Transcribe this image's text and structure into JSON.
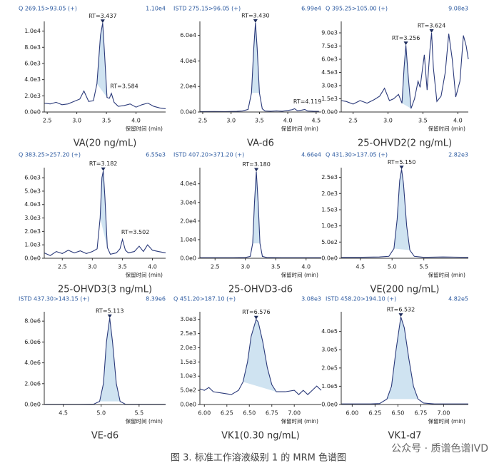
{
  "caption": "图 3. 标准工作溶液级别 1 的 MRM 色谱图",
  "watermark": "公众号 · 质谱色谱IVD",
  "chart_data": [
    {
      "type": "line",
      "title": "VA(20 ng/mL)",
      "header_left": "Q 269.15>93.05 (+)",
      "header_right": "1.10e4",
      "xlabel": "保留时间 (min)",
      "color": "#2b3a7a",
      "fill_color": "#cfe3f1",
      "xlim": [
        2.45,
        4.5
      ],
      "xticks": [
        2.5,
        {
          "value": 3,
          "label": "3.0"
        },
        3.5,
        {
          "value": 4,
          "label": "4.0"
        }
      ],
      "ylim": [
        0,
        11200
      ],
      "yticks": [
        {
          "value": 0,
          "label": "0.0e0"
        },
        {
          "value": 2000,
          "label": "2.0e3"
        },
        {
          "value": 4000,
          "label": "4.0e3"
        },
        {
          "value": 6000,
          "label": "6.0e3"
        },
        {
          "value": 8000,
          "label": "8.0e3"
        },
        {
          "value": 10000,
          "label": "1.0e4"
        }
      ],
      "x": [
        2.45,
        2.55,
        2.65,
        2.75,
        2.85,
        2.95,
        3.05,
        3.12,
        3.2,
        3.28,
        3.34,
        3.4,
        3.437,
        3.47,
        3.51,
        3.55,
        3.584,
        3.63,
        3.7,
        3.8,
        3.9,
        4.0,
        4.1,
        4.2,
        4.3,
        4.4,
        4.5
      ],
      "values": [
        1100,
        1000,
        1200,
        900,
        1000,
        1300,
        1600,
        2600,
        1300,
        1400,
        3500,
        9500,
        11000,
        7000,
        1800,
        1700,
        2300,
        1200,
        700,
        800,
        1000,
        600,
        900,
        1100,
        700,
        500,
        400
      ],
      "integration": [
        3.33,
        3.52
      ],
      "annotations": [
        {
          "text": "RT=3.437",
          "x": 3.437,
          "y": 11000,
          "marker": true
        },
        {
          "text": "RT=3.584",
          "x": 3.584,
          "y": 2300,
          "marker": false
        }
      ]
    },
    {
      "type": "line",
      "title": "VA-d6",
      "header_left": "ISTD 275.15>96.05 (+)",
      "header_right": "6.99e4",
      "xlabel": "保留时间 (min)",
      "color": "#2b3a7a",
      "fill_color": "#cfe3f1",
      "xlim": [
        2.45,
        4.59
      ],
      "xticks": [
        2.5,
        {
          "value": 3,
          "label": "3.0"
        },
        3.5,
        {
          "value": 4,
          "label": "4.0"
        },
        4.5
      ],
      "ylim": [
        0,
        71000
      ],
      "yticks": [
        {
          "value": 0,
          "label": "0.0e0"
        },
        {
          "value": 20000,
          "label": "2.0e4"
        },
        {
          "value": 40000,
          "label": "4.0e4"
        },
        {
          "value": 60000,
          "label": "6.0e4"
        }
      ],
      "x": [
        2.45,
        2.7,
        2.9,
        3.1,
        3.2,
        3.3,
        3.36,
        3.4,
        3.43,
        3.46,
        3.5,
        3.55,
        3.6,
        3.7,
        3.8,
        3.9,
        4.0,
        4.08,
        4.119,
        4.17,
        4.25,
        4.3,
        4.35,
        4.45,
        4.55
      ],
      "values": [
        300,
        400,
        300,
        500,
        800,
        2000,
        15000,
        50000,
        69900,
        50000,
        15000,
        2500,
        800,
        600,
        900,
        600,
        1200,
        1800,
        2600,
        1000,
        1500,
        2000,
        800,
        600,
        500
      ],
      "integration": [
        3.35,
        3.53
      ],
      "annotations": [
        {
          "text": "RT=3.430",
          "x": 3.43,
          "y": 69900,
          "marker": true
        },
        {
          "text": "RT=4.119",
          "x": 4.119,
          "y": 2600,
          "marker": false
        }
      ]
    },
    {
      "type": "line",
      "title": "25-OHVD2(2 ng/mL)",
      "header_left": "Q 395.25>105.00 (+)",
      "header_right": "9.08e3",
      "xlabel": "保留时间 (min)",
      "color": "#2b3a7a",
      "fill_color": "#cfe3f1",
      "xlim": [
        2.33,
        4.15
      ],
      "xticks": [
        2.5,
        {
          "value": 3,
          "label": "3.0"
        },
        3.5,
        {
          "value": 4,
          "label": "4.0"
        }
      ],
      "ylim": [
        0,
        10300
      ],
      "yticks": [
        {
          "value": 0,
          "label": "0.0e0"
        },
        {
          "value": 1500,
          "label": "1.5e3"
        },
        {
          "value": 3000,
          "label": "3.0e3"
        },
        {
          "value": 4500,
          "label": "4.5e3"
        },
        {
          "value": 6000,
          "label": "6.0e3"
        },
        {
          "value": 7500,
          "label": "7.5e3"
        },
        {
          "value": 9000,
          "label": "9.0e3"
        }
      ],
      "x": [
        2.33,
        2.4,
        2.5,
        2.6,
        2.7,
        2.8,
        2.88,
        2.95,
        3.02,
        3.08,
        3.15,
        3.2,
        3.23,
        3.256,
        3.29,
        3.33,
        3.38,
        3.43,
        3.46,
        3.52,
        3.56,
        3.6,
        3.624,
        3.65,
        3.7,
        3.76,
        3.82,
        3.87,
        3.92,
        3.97,
        4.03,
        4.08,
        4.12,
        4.15
      ],
      "values": [
        1300,
        1200,
        900,
        1300,
        1000,
        1400,
        1800,
        2700,
        1300,
        1500,
        2000,
        1000,
        5000,
        7600,
        4000,
        400,
        1500,
        3500,
        2800,
        6500,
        2500,
        7000,
        9000,
        5000,
        1200,
        1800,
        4500,
        8900,
        6000,
        1700,
        3500,
        8700,
        7500,
        6000
      ],
      "integration": [
        3.2,
        3.33
      ],
      "annotations": [
        {
          "text": "RT=3.256",
          "x": 3.256,
          "y": 7600,
          "marker": true
        },
        {
          "text": "RT=3.624",
          "x": 3.624,
          "y": 9000,
          "marker": true
        }
      ]
    },
    {
      "type": "line",
      "title": "25-OHVD3(3 ng/mL)",
      "header_left": "Q 383.25>257.20 (+)",
      "header_right": "6.55e3",
      "xlabel": "保留时间 (min)",
      "color": "#2b3a7a",
      "fill_color": "#cfe3f1",
      "xlim": [
        2.2,
        4.22
      ],
      "xticks": [
        2.5,
        {
          "value": 3,
          "label": "3.0"
        },
        3.5,
        {
          "value": 4,
          "label": "4.0"
        }
      ],
      "ylim": [
        0,
        6750
      ],
      "yticks": [
        {
          "value": 0,
          "label": "0.0e0"
        },
        {
          "value": 1000,
          "label": "1.0e3"
        },
        {
          "value": 2000,
          "label": "2.0e3"
        },
        {
          "value": 3000,
          "label": "3.0e3"
        },
        {
          "value": 4000,
          "label": "4.0e3"
        },
        {
          "value": 5000,
          "label": "5.0e3"
        },
        {
          "value": 6000,
          "label": "6.0e3"
        }
      ],
      "x": [
        2.2,
        2.3,
        2.4,
        2.5,
        2.6,
        2.7,
        2.8,
        2.9,
        3.0,
        3.08,
        3.13,
        3.16,
        3.182,
        3.21,
        3.25,
        3.3,
        3.4,
        3.46,
        3.502,
        3.55,
        3.6,
        3.7,
        3.78,
        3.85,
        3.92,
        4.0,
        4.1,
        4.22
      ],
      "values": [
        400,
        200,
        500,
        350,
        600,
        400,
        550,
        350,
        500,
        700,
        3000,
        6000,
        6500,
        4500,
        800,
        300,
        400,
        700,
        1400,
        600,
        400,
        500,
        900,
        500,
        1000,
        600,
        500,
        400
      ],
      "integration": [
        3.11,
        3.27
      ],
      "annotations": [
        {
          "text": "RT=3.182",
          "x": 3.182,
          "y": 6500,
          "marker": true
        },
        {
          "text": "RT=3.502",
          "x": 3.502,
          "y": 1400,
          "marker": false
        }
      ]
    },
    {
      "type": "line",
      "title": "25-OHVD3-d6",
      "header_left": "ISTD 407.20>371.20 (+)",
      "header_right": "4.66e4",
      "xlabel": "保留时间 (min)",
      "color": "#2b3a7a",
      "fill_color": "#cfe3f1",
      "xlim": [
        2.25,
        4.25
      ],
      "xticks": [
        2.5,
        {
          "value": 3,
          "label": "3.0"
        },
        3.5,
        {
          "value": 4,
          "label": "4.0"
        }
      ],
      "ylim": [
        0,
        48700
      ],
      "yticks": [
        {
          "value": 0,
          "label": "0.0e0"
        },
        {
          "value": 10000,
          "label": "1.0e4"
        },
        {
          "value": 20000,
          "label": "2.0e4"
        },
        {
          "value": 30000,
          "label": "3.0e4"
        },
        {
          "value": 40000,
          "label": "4.0e4"
        }
      ],
      "x": [
        2.25,
        2.5,
        2.8,
        3.0,
        3.08,
        3.12,
        3.15,
        3.18,
        3.21,
        3.24,
        3.28,
        3.35,
        3.6,
        3.9,
        4.25
      ],
      "values": [
        300,
        300,
        300,
        400,
        1000,
        8000,
        30000,
        46600,
        30000,
        8000,
        1000,
        400,
        300,
        300,
        300
      ],
      "integration": [
        3.1,
        3.27
      ],
      "annotations": [
        {
          "text": "RT=3.180",
          "x": 3.18,
          "y": 46600,
          "marker": true
        }
      ]
    },
    {
      "type": "line",
      "title": "VE(200 ng/mL)",
      "header_left": "Q 431.30>137.05 (+)",
      "header_right": "2.82e3",
      "xlabel": "保留时间 (min)",
      "color": "#2b3a7a",
      "fill_color": "#cfe3f1",
      "xlim": [
        4.2,
        6.2
      ],
      "xticks": [
        4.5,
        {
          "value": 5,
          "label": "5.0"
        },
        5.5
      ],
      "ylim": [
        0,
        2800
      ],
      "yticks": [
        {
          "value": 0,
          "label": "0.0e0"
        },
        {
          "value": 500,
          "label": "5.0e2"
        },
        {
          "value": 1000,
          "label": "1.0e3"
        },
        {
          "value": 1500,
          "label": "1.5e3"
        },
        {
          "value": 2000,
          "label": "2.0e3"
        },
        {
          "value": 2500,
          "label": "2.5e3"
        }
      ],
      "x": [
        4.2,
        4.5,
        4.8,
        4.95,
        5.03,
        5.08,
        5.12,
        5.15,
        5.18,
        5.23,
        5.28,
        5.35,
        5.5,
        5.8,
        6.2
      ],
      "values": [
        30,
        30,
        40,
        60,
        300,
        1200,
        2400,
        2750,
        2300,
        1000,
        250,
        60,
        30,
        40,
        30
      ],
      "integration": [
        5.0,
        5.32
      ],
      "annotations": [
        {
          "text": "RT=5.150",
          "x": 5.15,
          "y": 2750,
          "marker": true
        }
      ]
    },
    {
      "type": "line",
      "title": "VE-d6",
      "header_left": "ISTD 437.30>143.15 (+)",
      "header_right": "8.39e6",
      "xlabel": "保留时间 (min)",
      "color": "#2b3a7a",
      "fill_color": "#cfe3f1",
      "xlim": [
        4.25,
        5.85
      ],
      "xticks": [
        4.5,
        {
          "value": 5,
          "label": "5.0"
        },
        5.5
      ],
      "ylim": [
        0,
        8900000
      ],
      "yticks": [
        {
          "value": 0,
          "label": "0.0e0"
        },
        {
          "value": 2000000,
          "label": "2.0e6"
        },
        {
          "value": 4000000,
          "label": "4.0e6"
        },
        {
          "value": 6000000,
          "label": "6.0e6"
        },
        {
          "value": 8000000,
          "label": "8.0e6"
        }
      ],
      "x": [
        4.25,
        4.7,
        4.9,
        4.98,
        5.03,
        5.07,
        5.113,
        5.15,
        5.2,
        5.25,
        5.32,
        5.5,
        5.85
      ],
      "values": [
        20000,
        20000,
        30000,
        300000,
        2000000,
        6000000,
        8300000,
        6000000,
        2000000,
        300000,
        30000,
        20000,
        20000
      ],
      "integration": [
        4.97,
        5.27
      ],
      "annotations": [
        {
          "text": "RT=5.113",
          "x": 5.113,
          "y": 8300000,
          "marker": true
        }
      ]
    },
    {
      "type": "line",
      "title": "VK1(0.30 ng/mL)",
      "header_left": "Q 451.20>187.10 (+)",
      "header_right": "3.08e3",
      "xlabel": "保留时间 (min)",
      "color": "#2b3a7a",
      "fill_color": "#cfe3f1",
      "xlim": [
        5.95,
        7.3
      ],
      "xticks": [
        {
          "value": 6,
          "label": "6.00"
        },
        6.25,
        {
          "value": 6.5,
          "label": "6.50"
        },
        6.75,
        {
          "value": 7,
          "label": "7.00"
        }
      ],
      "ylim": [
        0,
        3270
      ],
      "yticks": [
        {
          "value": 0,
          "label": "0.0e0"
        },
        {
          "value": 500,
          "label": "5.0e2"
        },
        {
          "value": 1000,
          "label": "1.0e3"
        },
        {
          "value": 1500,
          "label": "1.5e3"
        },
        {
          "value": 2000,
          "label": "2.0e3"
        },
        {
          "value": 2500,
          "label": "2.5e3"
        },
        {
          "value": 3000,
          "label": "3.0e3"
        }
      ],
      "x": [
        5.95,
        6.0,
        6.05,
        6.1,
        6.2,
        6.3,
        6.38,
        6.43,
        6.48,
        6.52,
        6.576,
        6.6,
        6.65,
        6.7,
        6.75,
        6.8,
        6.9,
        7.0,
        7.05,
        7.1,
        7.15,
        7.2,
        7.25,
        7.3
      ],
      "values": [
        550,
        500,
        600,
        450,
        400,
        350,
        500,
        800,
        1500,
        2400,
        3000,
        2900,
        2200,
        1300,
        700,
        450,
        450,
        500,
        350,
        500,
        350,
        500,
        650,
        500
      ],
      "integration": [
        6.4,
        6.83
      ],
      "annotations": [
        {
          "text": "RT=6.576",
          "x": 6.576,
          "y": 3000,
          "marker": true
        }
      ]
    },
    {
      "type": "line",
      "title": "VK1-d7",
      "header_left": "ISTD 458.20>194.10 (+)",
      "header_right": "4.82e5",
      "xlabel": "保留时间 (min)",
      "color": "#2b3a7a",
      "fill_color": "#cfe3f1",
      "xlim": [
        5.88,
        7.27
      ],
      "xticks": [
        {
          "value": 6,
          "label": "6.00"
        },
        6.25,
        {
          "value": 6.5,
          "label": "6.50"
        },
        6.75,
        {
          "value": 7,
          "label": "7.00"
        }
      ],
      "ylim": [
        0,
        508000
      ],
      "yticks": [
        {
          "value": 0,
          "label": "0.0e0"
        },
        {
          "value": 100000,
          "label": "1.0e5"
        },
        {
          "value": 200000,
          "label": "2.0e5"
        },
        {
          "value": 300000,
          "label": "3.0e5"
        },
        {
          "value": 400000,
          "label": "4.0e5"
        }
      ],
      "x": [
        5.88,
        6.2,
        6.3,
        6.38,
        6.43,
        6.48,
        6.532,
        6.57,
        6.62,
        6.67,
        6.72,
        6.78,
        6.9,
        7.27
      ],
      "values": [
        3000,
        3000,
        5000,
        30000,
        100000,
        300000,
        480000,
        420000,
        250000,
        100000,
        30000,
        8000,
        3000,
        3000
      ],
      "integration": [
        6.36,
        6.77
      ],
      "annotations": [
        {
          "text": "RT=6.532",
          "x": 6.532,
          "y": 480000,
          "marker": true
        }
      ]
    }
  ]
}
